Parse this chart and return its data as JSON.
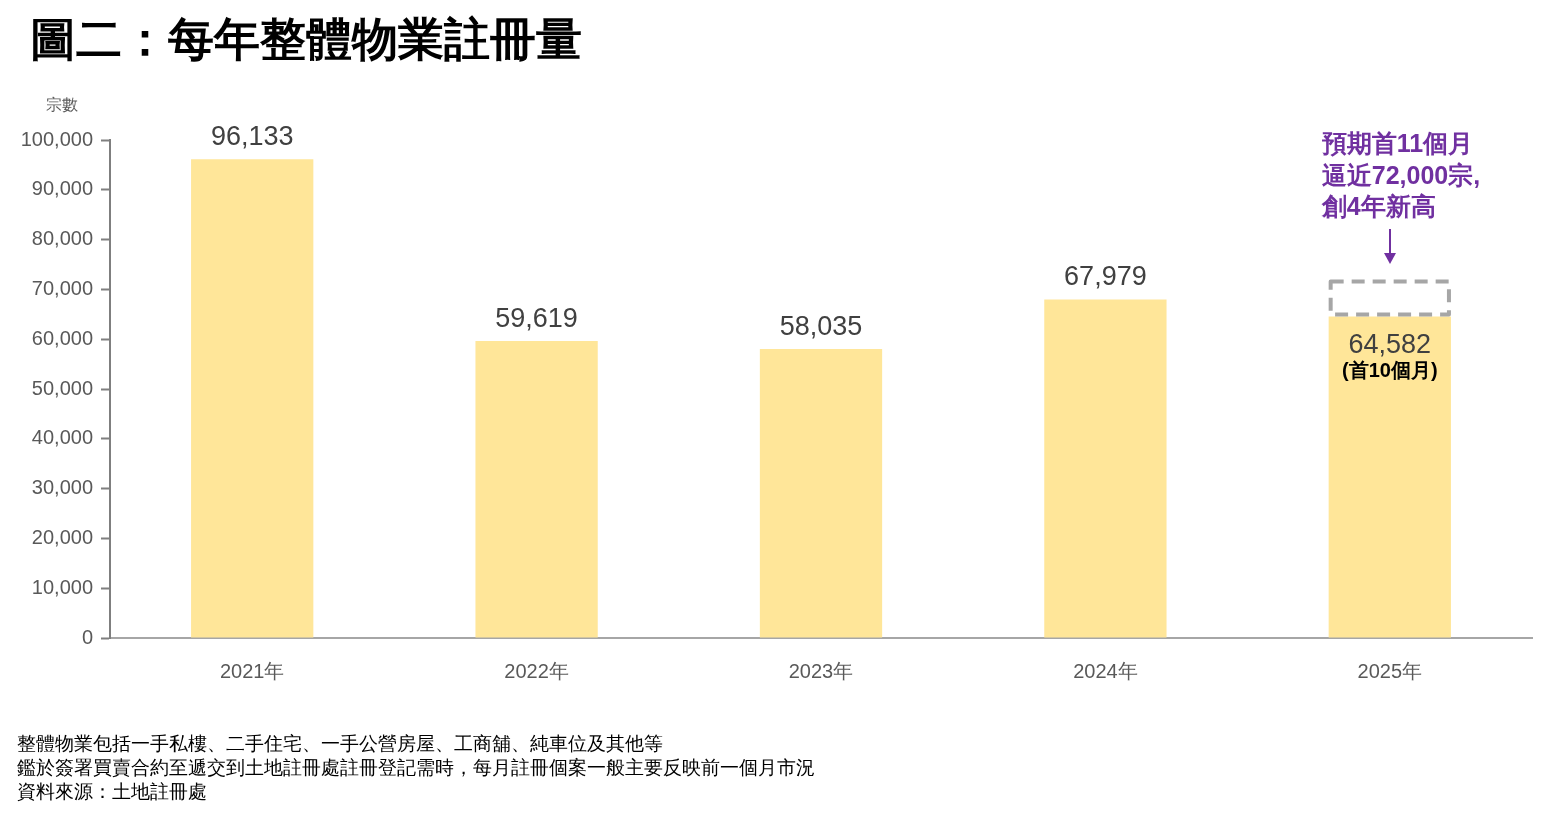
{
  "chart_data": {
    "type": "bar",
    "title": "圖二：每年整體物業註冊量",
    "ylabel": "宗數",
    "categories": [
      "2021年",
      "2022年",
      "2023年",
      "2024年",
      "2025年"
    ],
    "stacked": true,
    "series": [
      {
        "color": "#ffe699",
        "values": [
          96133,
          59619,
          58035,
          67979,
          64582
        ],
        "value_labels": [
          "96,133",
          "59,619",
          "58,035",
          "67,979",
          "64,582"
        ]
      },
      {
        "color": "#a6a6a6",
        "line_style": "dashed",
        "values": [
          null,
          null,
          null,
          null,
          7400
        ]
      }
    ],
    "ylim": [
      0,
      100000
    ],
    "yticks": [
      0,
      {
        "value": 10000,
        "label": "10,000"
      },
      {
        "value": 20000,
        "label": "20,000"
      },
      {
        "value": 30000,
        "label": "30,000"
      },
      {
        "value": 40000,
        "label": "40,000"
      },
      {
        "value": 50000,
        "label": "50,000"
      },
      {
        "value": 60000,
        "label": "60,000"
      },
      {
        "value": 70000,
        "label": "70,000"
      },
      {
        "value": 80000,
        "label": "80,000"
      },
      {
        "value": 90000,
        "label": "90,000"
      },
      {
        "value": 100000,
        "label": "100,000"
      }
    ],
    "annotations": [
      {
        "text": "預期首11個月逼近72,000宗,創4年新高",
        "x": "2025年",
        "y": 72000
      },
      {
        "text": "(首10個月)",
        "x": "2025年",
        "y": 64582
      },
      "整體物業包括一手私樓、二手住宅、一手公營房屋、工商舖、純車位及其他等",
      "鑑於簽署買賣合約至遞交到土地註冊處註冊登記需時，每月註冊個案一般主要反映前一個月市況",
      "資料來源：土地註冊處"
    ]
  }
}
